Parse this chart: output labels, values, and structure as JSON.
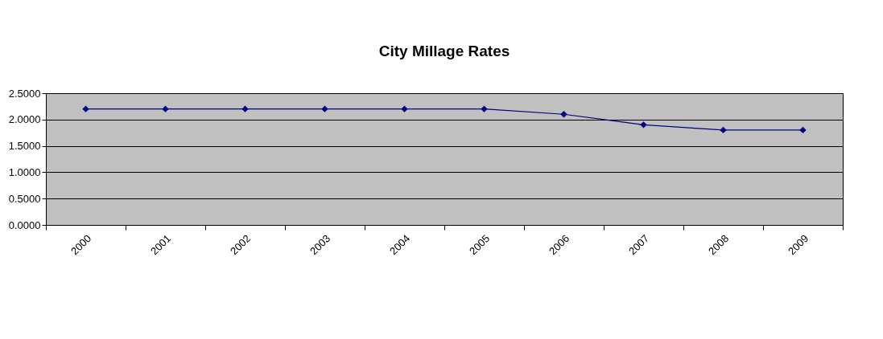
{
  "chart_data": {
    "type": "line",
    "title": "City Millage Rates",
    "categories": [
      "2000",
      "2001",
      "2002",
      "2003",
      "2004",
      "2005",
      "2006",
      "2007",
      "2008",
      "2009"
    ],
    "series": [
      {
        "color": "#000080",
        "values": [
          2.2,
          2.2,
          2.2,
          2.2,
          2.2,
          2.2,
          2.1,
          1.9,
          1.8,
          1.8
        ]
      }
    ],
    "ylim": [
      0,
      2.5
    ],
    "yticks": [
      {
        "value": 0,
        "label": "0.0000"
      },
      {
        "value": 0.5,
        "label": "0.5000"
      },
      {
        "value": 1,
        "label": "1.0000"
      },
      {
        "value": 1.5,
        "label": "1.5000"
      },
      {
        "value": 2,
        "label": "2.0000"
      },
      {
        "value": 2.5,
        "label": "2.5000"
      }
    ],
    "grid": "y",
    "marker": "diamond",
    "line_style": "solid",
    "legend": false
  }
}
